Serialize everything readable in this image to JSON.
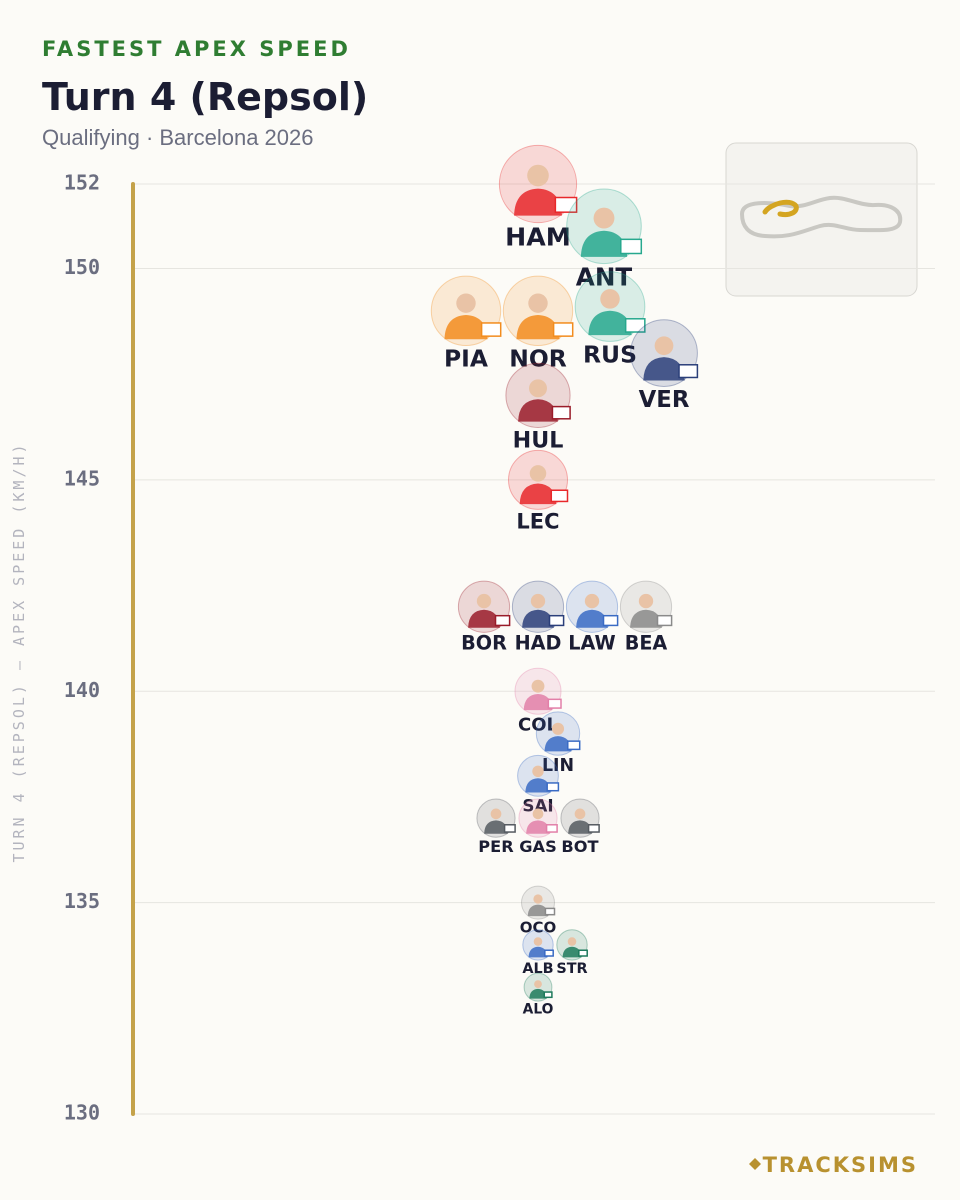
{
  "chart_data": {
    "type": "scatter",
    "kicker": "FASTEST APEX SPEED",
    "title": "Turn 4 (Repsol)",
    "subtitle": "Qualifying · Barcelona 2026",
    "ylabel": "TURN 4 (REPSOL) — APEX SPEED (KM/H)",
    "brand": "TRACKSIMS",
    "categories": [
      "HAM",
      "ANT",
      "NOR",
      "RUS",
      "PIA",
      "VER",
      "HUL",
      "LEC",
      "HAD",
      "LAW",
      "BOR",
      "BEA",
      "COL",
      "LIN",
      "SAI",
      "GAS",
      "BOT",
      "PER",
      "OCO",
      "ALB",
      "STR",
      "ALO"
    ],
    "values": [
      152,
      151,
      149,
      149.1,
      149,
      148,
      147,
      145,
      142,
      142,
      142,
      142,
      140,
      139,
      138,
      137,
      137,
      137,
      135,
      134,
      134,
      133
    ],
    "colors": [
      "#e8282b",
      "#27a88e",
      "#f28c1e",
      "#27a88e",
      "#f28c1e",
      "#2b3f7a",
      "#9a1c2a",
      "#e8282b",
      "#2b3f7a",
      "#3a6bc4",
      "#9a1c2a",
      "#8a8a8a",
      "#e27fa8",
      "#3a6bc4",
      "#3a6bc4",
      "#e27fa8",
      "#555a60",
      "#555a60",
      "#8a8a8a",
      "#3a6bc4",
      "#1e7a5c",
      "#1e7a5c"
    ],
    "ylim": [
      130,
      152
    ],
    "yticks": [
      130,
      135,
      140,
      145,
      150,
      152
    ],
    "grid": true
  }
}
